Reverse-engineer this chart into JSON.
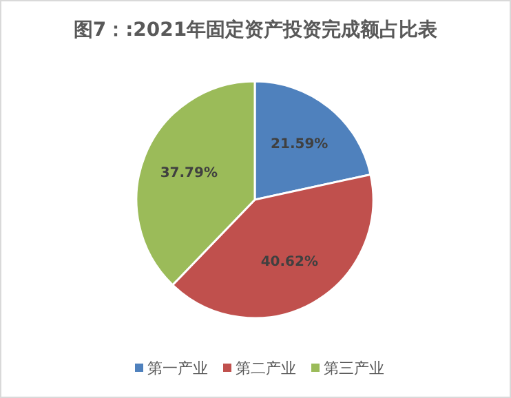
{
  "chart_data": {
    "type": "pie",
    "title": "图7：:2021年固定资产投资完成额占比表",
    "categories": [
      "第一产业",
      "第二产业",
      "第三产业"
    ],
    "values": [
      21.59,
      40.62,
      37.79
    ],
    "colors": [
      "#4f81bd",
      "#c0504d",
      "#9bbb59"
    ],
    "value_labels": [
      "21.59%",
      "40.62%",
      "37.79%"
    ],
    "legend": "bottom"
  }
}
